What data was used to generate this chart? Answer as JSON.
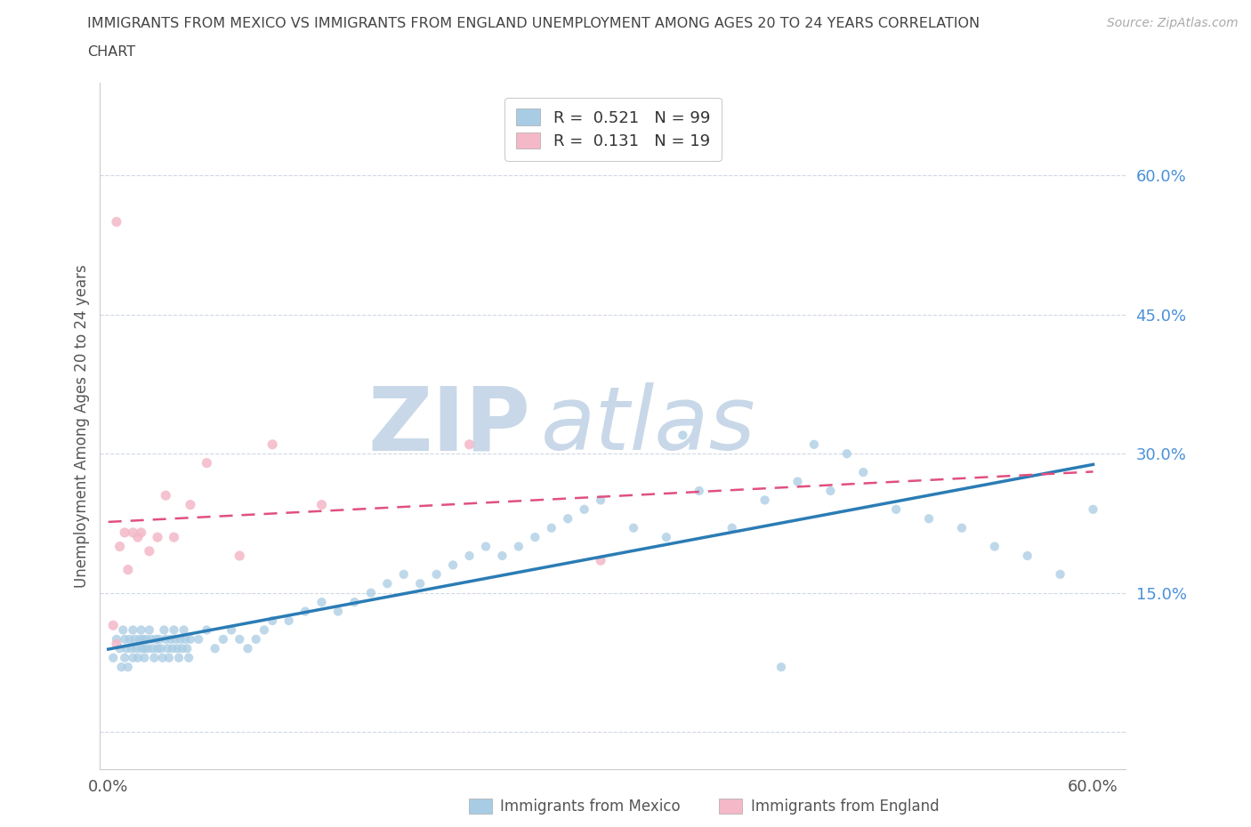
{
  "title_line1": "IMMIGRANTS FROM MEXICO VS IMMIGRANTS FROM ENGLAND UNEMPLOYMENT AMONG AGES 20 TO 24 YEARS CORRELATION",
  "title_line2": "CHART",
  "source_text": "Source: ZipAtlas.com",
  "ylabel": "Unemployment Among Ages 20 to 24 years",
  "xlim": [
    -0.005,
    0.62
  ],
  "ylim": [
    -0.04,
    0.7
  ],
  "xtick_vals": [
    0.0,
    0.1,
    0.2,
    0.3,
    0.4,
    0.5,
    0.6
  ],
  "ytick_vals": [
    0.0,
    0.15,
    0.3,
    0.45,
    0.6
  ],
  "watermark_zip": "ZIP",
  "watermark_atlas": "atlas",
  "legend_r1": "0.521",
  "legend_n1": "99",
  "legend_r2": "0.131",
  "legend_n2": "19",
  "color_mexico": "#a8cce4",
  "color_england": "#f4b8c8",
  "color_mexico_line": "#2b7cb5",
  "color_england_line": "#e05080",
  "color_yticks": "#4a90d9",
  "color_title": "#444444",
  "color_source": "#aaaaaa",
  "color_grid": "#d0d8e4",
  "color_watermark": "#c8d8e8",
  "bg_color": "#ffffff",
  "mexico_x": [
    0.003,
    0.005,
    0.007,
    0.008,
    0.009,
    0.01,
    0.01,
    0.011,
    0.012,
    0.013,
    0.014,
    0.015,
    0.015,
    0.016,
    0.017,
    0.018,
    0.019,
    0.02,
    0.02,
    0.021,
    0.022,
    0.022,
    0.023,
    0.024,
    0.025,
    0.026,
    0.027,
    0.028,
    0.029,
    0.03,
    0.031,
    0.032,
    0.033,
    0.034,
    0.035,
    0.036,
    0.037,
    0.038,
    0.039,
    0.04,
    0.041,
    0.042,
    0.043,
    0.044,
    0.045,
    0.046,
    0.047,
    0.048,
    0.049,
    0.05,
    0.055,
    0.06,
    0.065,
    0.07,
    0.075,
    0.08,
    0.085,
    0.09,
    0.095,
    0.1,
    0.11,
    0.12,
    0.13,
    0.14,
    0.15,
    0.16,
    0.17,
    0.18,
    0.19,
    0.2,
    0.21,
    0.22,
    0.23,
    0.24,
    0.25,
    0.26,
    0.27,
    0.28,
    0.29,
    0.3,
    0.32,
    0.34,
    0.36,
    0.38,
    0.4,
    0.42,
    0.44,
    0.46,
    0.48,
    0.5,
    0.52,
    0.54,
    0.56,
    0.58,
    0.6,
    0.45,
    0.35,
    0.43,
    0.41
  ],
  "mexico_y": [
    0.08,
    0.1,
    0.09,
    0.07,
    0.11,
    0.1,
    0.08,
    0.09,
    0.07,
    0.1,
    0.09,
    0.08,
    0.11,
    0.1,
    0.09,
    0.08,
    0.1,
    0.09,
    0.11,
    0.1,
    0.09,
    0.08,
    0.1,
    0.09,
    0.11,
    0.1,
    0.09,
    0.08,
    0.1,
    0.09,
    0.1,
    0.09,
    0.08,
    0.11,
    0.1,
    0.09,
    0.08,
    0.1,
    0.09,
    0.11,
    0.1,
    0.09,
    0.08,
    0.1,
    0.09,
    0.11,
    0.1,
    0.09,
    0.08,
    0.1,
    0.1,
    0.11,
    0.09,
    0.1,
    0.11,
    0.1,
    0.09,
    0.1,
    0.11,
    0.12,
    0.12,
    0.13,
    0.14,
    0.13,
    0.14,
    0.15,
    0.16,
    0.17,
    0.16,
    0.17,
    0.18,
    0.19,
    0.2,
    0.19,
    0.2,
    0.21,
    0.22,
    0.23,
    0.24,
    0.25,
    0.22,
    0.21,
    0.26,
    0.22,
    0.25,
    0.27,
    0.26,
    0.28,
    0.24,
    0.23,
    0.22,
    0.2,
    0.19,
    0.17,
    0.24,
    0.3,
    0.32,
    0.31,
    0.07
  ],
  "england_x": [
    0.003,
    0.005,
    0.007,
    0.01,
    0.012,
    0.015,
    0.018,
    0.02,
    0.025,
    0.03,
    0.035,
    0.04,
    0.05,
    0.06,
    0.08,
    0.1,
    0.13,
    0.22,
    0.3
  ],
  "england_y": [
    0.115,
    0.095,
    0.2,
    0.215,
    0.175,
    0.215,
    0.21,
    0.215,
    0.195,
    0.21,
    0.255,
    0.21,
    0.245,
    0.29,
    0.19,
    0.31,
    0.245,
    0.31,
    0.185
  ],
  "england_outlier_x": [
    0.005
  ],
  "england_outlier_y": [
    0.55
  ]
}
